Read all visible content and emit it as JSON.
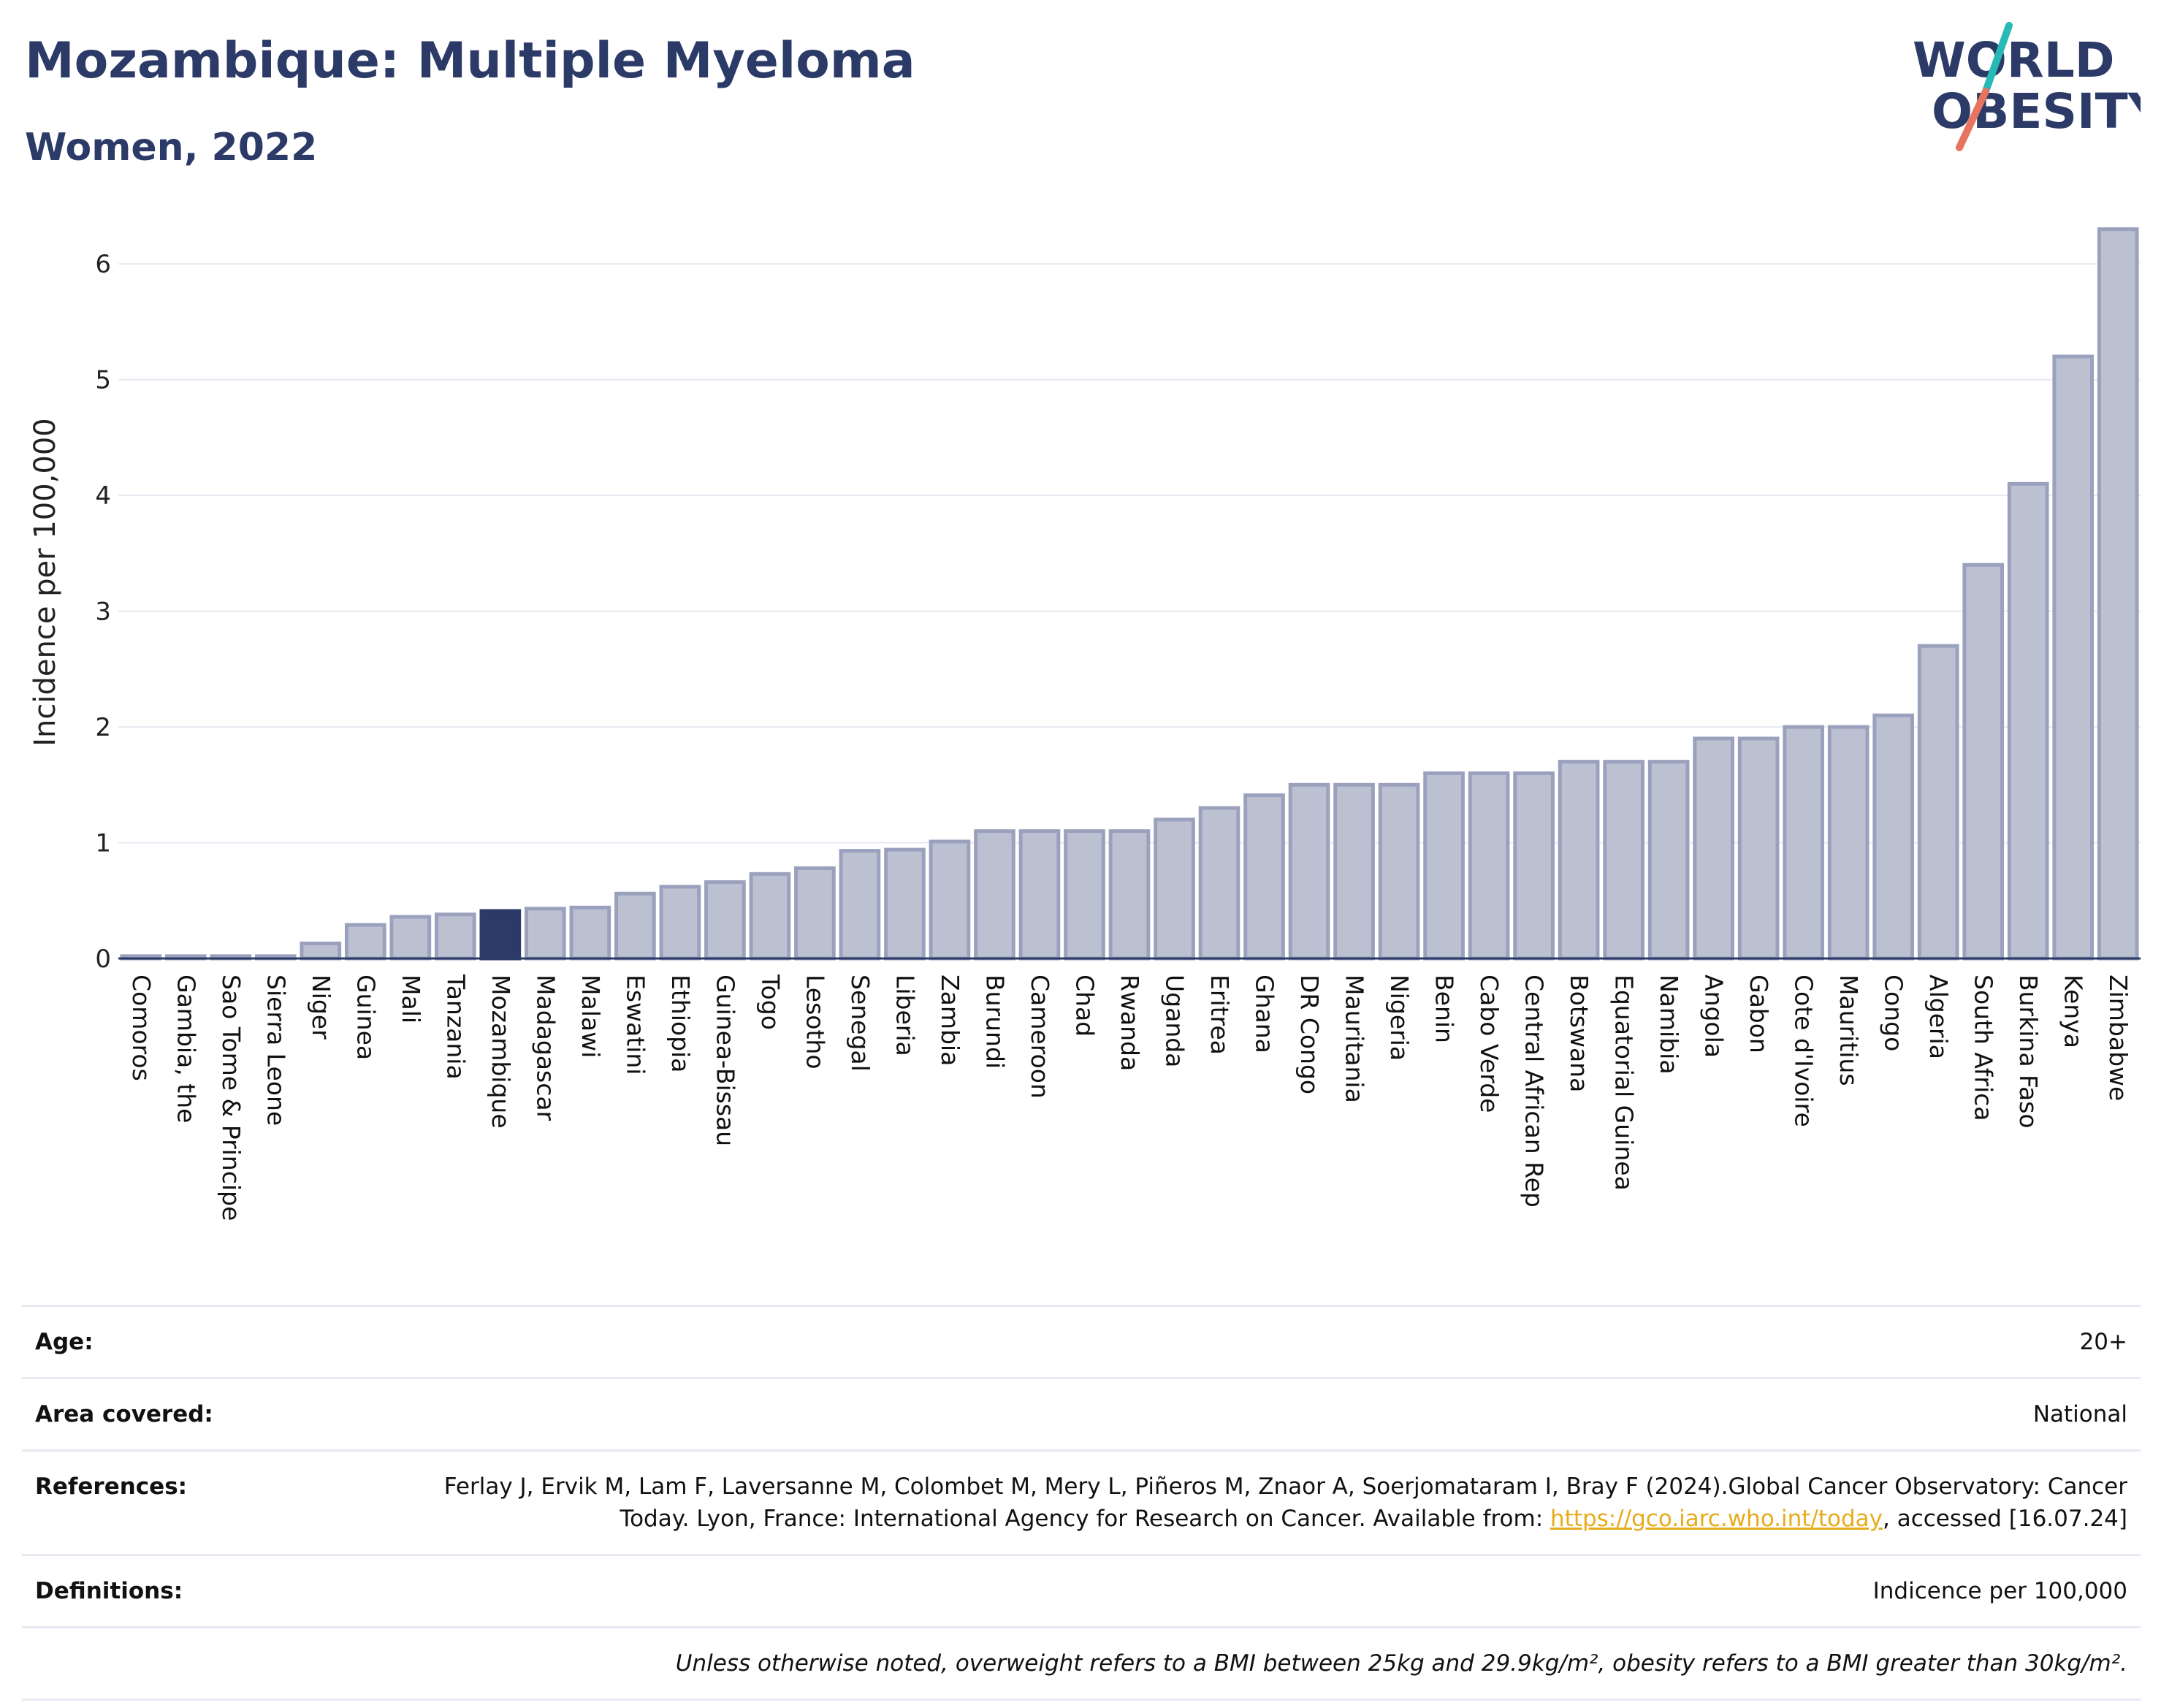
{
  "header": {
    "title": "Mozambique: Multiple Myeloma",
    "subtitle": "Women, 2022"
  },
  "logo": {
    "line1": "WORLD",
    "line2": "OBESITY",
    "colors": {
      "text": "#2b3a67",
      "slash_top": "#27b9b5",
      "slash_bottom": "#e8735f"
    }
  },
  "colors": {
    "highlight_bar": "#2b3a67",
    "bar_fill": "#bcc1d2",
    "bar_stroke": "#9aa1bd",
    "grid": "#e6e8f0",
    "link": "#e6ac1c"
  },
  "chart_data": {
    "type": "bar",
    "ylabel": "Incidence per 100,000",
    "xlabel": "",
    "ylim": [
      0,
      6.5
    ],
    "yticks": [
      0,
      1,
      2,
      3,
      4,
      5,
      6
    ],
    "grid": true,
    "highlight": "Mozambique",
    "categories": [
      "Comoros",
      "Gambia, the",
      "Sao Tome & Principe",
      "Sierra Leone",
      "Niger",
      "Guinea",
      "Mali",
      "Tanzania",
      "Mozambique",
      "Madagascar",
      "Malawi",
      "Eswatini",
      "Ethiopia",
      "Guinea-Bissau",
      "Togo",
      "Lesotho",
      "Senegal",
      "Liberia",
      "Zambia",
      "Burundi",
      "Cameroon",
      "Chad",
      "Rwanda",
      "Uganda",
      "Eritrea",
      "Ghana",
      "DR Congo",
      "Mauritania",
      "Nigeria",
      "Benin",
      "Cabo Verde",
      "Central African Rep",
      "Botswana",
      "Equatorial Guinea",
      "Namibia",
      "Angola",
      "Gabon",
      "Cote d'Ivoire",
      "Mauritius",
      "Congo",
      "Algeria",
      "South Africa",
      "Burkina Faso",
      "Kenya",
      "Zimbabwe"
    ],
    "values": [
      0.02,
      0.02,
      0.02,
      0.02,
      0.13,
      0.29,
      0.36,
      0.38,
      0.41,
      0.43,
      0.44,
      0.56,
      0.62,
      0.66,
      0.73,
      0.78,
      0.93,
      0.94,
      1.01,
      1.1,
      1.1,
      1.1,
      1.1,
      1.2,
      1.3,
      1.41,
      1.5,
      1.5,
      1.5,
      1.6,
      1.6,
      1.6,
      1.7,
      1.7,
      1.7,
      1.9,
      1.9,
      2.0,
      2.0,
      2.1,
      2.7,
      3.4,
      4.1,
      5.2,
      6.3
    ]
  },
  "info": {
    "age_label": "Age:",
    "age_value": "20+",
    "area_label": "Area covered:",
    "area_value": "National",
    "references_label": "References:",
    "references_text": "Ferlay J, Ervik M, Lam F, Laversanne M, Colombet M, Mery L, Piñeros M, Znaor A, Soerjomataram I, Bray F (2024).Global Cancer Observatory: Cancer Today. Lyon, France: International Agency for Research on Cancer. Available from:",
    "references_link": "https://gco.iarc.who.int/today",
    "references_suffix": ", accessed [16.07.24]",
    "definitions_label": "Definitions:",
    "definitions_value": "Indicence per 100,000",
    "note": "Unless otherwise noted, overweight refers to a BMI between 25kg and 29.9kg/m², obesity refers to a BMI greater than 30kg/m²."
  }
}
